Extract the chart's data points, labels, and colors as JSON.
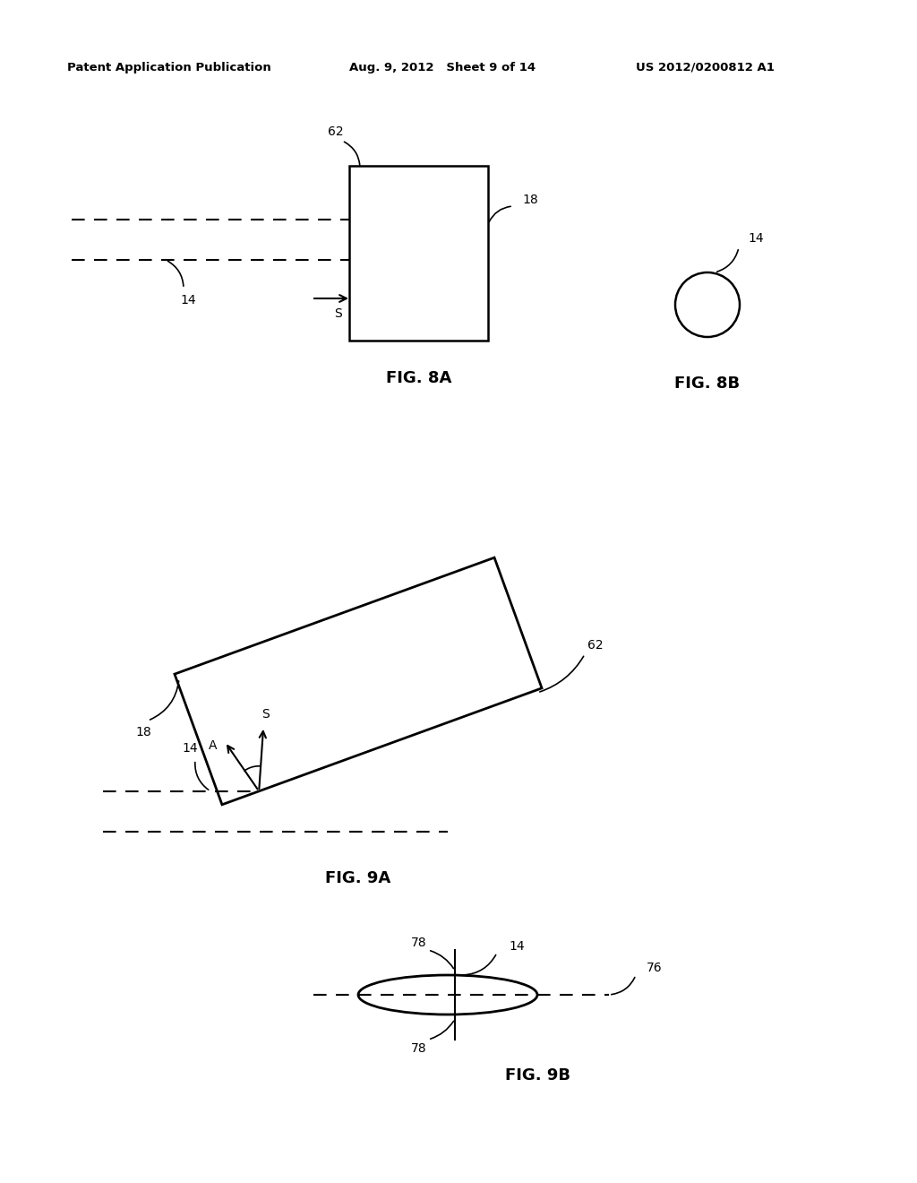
{
  "bg_color": "#ffffff",
  "header_left": "Patent Application Publication",
  "header_mid": "Aug. 9, 2012   Sheet 9 of 14",
  "header_right": "US 2012/0200812 A1",
  "fig8a_label": "FIG. 8A",
  "fig8b_label": "FIG. 8B",
  "fig9a_label": "FIG. 9A",
  "fig9b_label": "FIG. 9B"
}
